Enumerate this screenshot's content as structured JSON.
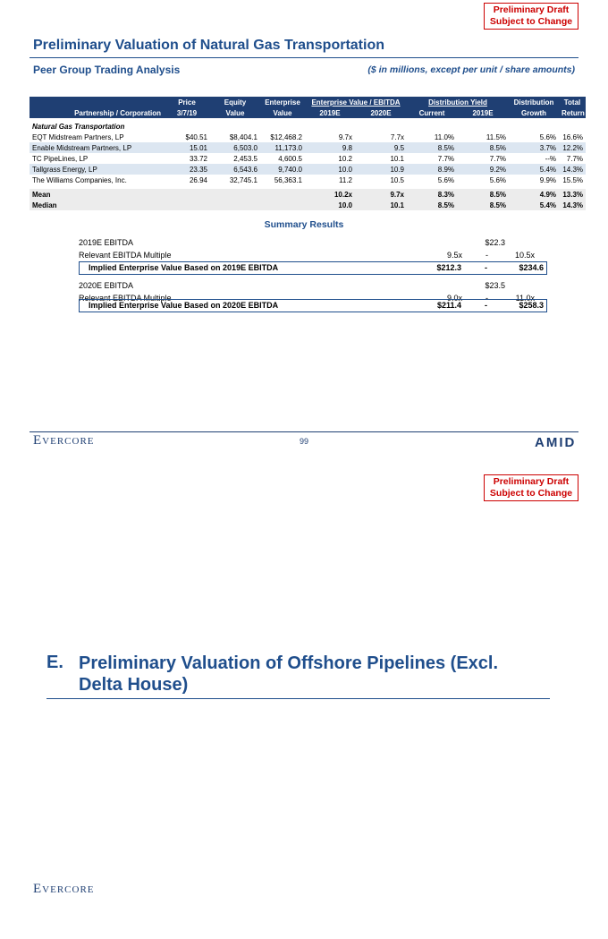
{
  "stamps": [
    {
      "line1": "Preliminary Draft",
      "line2": "Subject to Change"
    },
    {
      "line1": "Preliminary Draft",
      "line2": "Subject to Change"
    }
  ],
  "page1": {
    "title": "Preliminary Valuation of Natural Gas Transportation",
    "subtitle": "Peer Group Trading Analysis",
    "note": "($ in millions, except per unit / share amounts)",
    "table": {
      "header_top": [
        "Price",
        "Equity",
        "Enterprise",
        "Enterprise Value / EBITDA",
        "Distribution Yield",
        "Distribution",
        "Total"
      ],
      "header_bottom": [
        "Partnership / Corporation",
        "3/7/19",
        "Value",
        "Value",
        "2019E",
        "2020E",
        "Current",
        "2019E",
        "Growth",
        "Return"
      ],
      "section": "Natural Gas Transportation",
      "rows": [
        [
          "EQT Midstream Partners, LP",
          "$40.51",
          "$8,404.1",
          "$12,468.2",
          "9.7x",
          "7.7x",
          "11.0%",
          "11.5%",
          "5.6%",
          "16.6%"
        ],
        [
          "Enable Midstream Partners, LP",
          "15.01",
          "6,503.0",
          "11,173.0",
          "9.8",
          "9.5",
          "8.5%",
          "8.5%",
          "3.7%",
          "12.2%"
        ],
        [
          "TC PipeLines, LP",
          "33.72",
          "2,453.5",
          "4,600.5",
          "10.2",
          "10.1",
          "7.7%",
          "7.7%",
          "--%",
          "7.7%"
        ],
        [
          "Tallgrass Energy, LP",
          "23.35",
          "6,543.6",
          "9,740.0",
          "10.0",
          "10.9",
          "8.9%",
          "9.2%",
          "5.4%",
          "14.3%"
        ],
        [
          "The Williams Companies, Inc.",
          "26.94",
          "32,745.1",
          "56,363.1",
          "11.2",
          "10.5",
          "5.6%",
          "5.6%",
          "9.9%",
          "15.5%"
        ]
      ],
      "stats": [
        [
          "Mean",
          "10.2x",
          "9.7x",
          "8.3%",
          "8.5%",
          "4.9%",
          "13.3%"
        ],
        [
          "Median",
          "10.0",
          "10.1",
          "8.5%",
          "8.5%",
          "5.4%",
          "14.3%"
        ]
      ]
    },
    "summary": {
      "title": "Summary Results",
      "blocks": [
        {
          "metric": {
            "label": "2019E EBITDA",
            "value": "$22.3"
          },
          "multiple": {
            "label": "Relevant EBITDA Multiple",
            "low": "9.5x",
            "sep": "-",
            "high": "10.5x"
          },
          "implied": {
            "label": "Implied Enterprise Value Based on 2019E EBITDA",
            "low": "$212.3",
            "sep": "-",
            "high": "$234.6"
          }
        },
        {
          "metric": {
            "label": "2020E EBITDA",
            "value": "$23.5"
          },
          "multiple": {
            "label": "Relevant EBITDA Multiple",
            "low": "9.0x",
            "sep": "-",
            "high": "11.0x"
          },
          "implied": {
            "label": "Implied Enterprise Value Based on 2020E EBITDA",
            "low": "$211.4",
            "sep": "-",
            "high": "$258.3"
          }
        }
      ]
    },
    "footer": {
      "logo": "Evercore",
      "page": "99",
      "partner_logo": "AMID"
    }
  },
  "page2": {
    "heading_letter": "E.",
    "heading": "Preliminary Valuation of Offshore Pipelines (Excl. Delta House)",
    "logo": "Evercore"
  }
}
